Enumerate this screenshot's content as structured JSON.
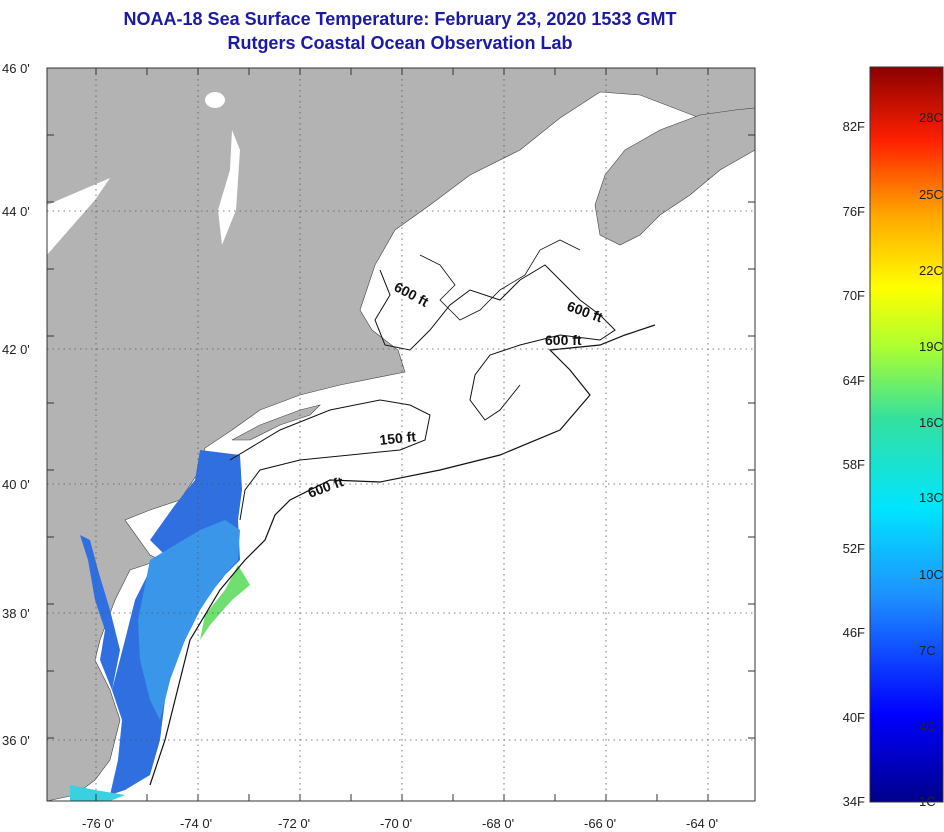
{
  "title": "NOAA-18 Sea Surface Temperature:  February 23, 2020 1533 GMT",
  "subtitle": "Rutgers Coastal Ocean Observation Lab",
  "map": {
    "lon_labels": [
      "-76 0'",
      "-74 0'",
      "-72 0'",
      "-70 0'",
      "-68 0'",
      "-66 0'",
      "-64 0'"
    ],
    "lat_labels": [
      "46 0'",
      "44 0'",
      "42 0'",
      "40 0'",
      "38 0'",
      "36 0'"
    ],
    "contour_labels": [
      "600 ft",
      "600 ft",
      "600 ft",
      "150 ft",
      "600 ft"
    ],
    "colors": {
      "land": "#b3b3b3",
      "no_data": "#ffffff",
      "cold_water": "#2f6fe0",
      "warm_water": "#6fe06f"
    }
  },
  "colorbar": {
    "f_labels": [
      "82F",
      "76F",
      "70F",
      "64F",
      "58F",
      "52F",
      "46F",
      "40F",
      "34F"
    ],
    "c_labels": [
      "28C",
      "25C",
      "22C",
      "19C",
      "16C",
      "13C",
      "10C",
      "7C",
      "4C",
      "1C"
    ]
  }
}
